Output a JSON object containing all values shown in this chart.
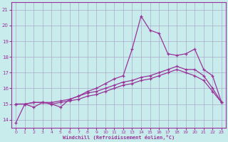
{
  "xlabel": "Windchill (Refroidissement éolien,°C)",
  "bg_color": "#c8ecec",
  "grid_color": "#aaaacc",
  "line_color": "#993399",
  "x_ticks": [
    0,
    1,
    2,
    3,
    4,
    5,
    6,
    7,
    8,
    9,
    10,
    11,
    12,
    13,
    14,
    15,
    16,
    17,
    18,
    19,
    20,
    21,
    22,
    23
  ],
  "y_ticks": [
    14,
    15,
    16,
    17,
    18,
    19,
    20,
    21
  ],
  "xlim": [
    -0.5,
    23.5
  ],
  "ylim": [
    13.5,
    21.5
  ],
  "line1_x": [
    0,
    1,
    2,
    3,
    4,
    5,
    6,
    7,
    8,
    9,
    10,
    11,
    12,
    13,
    14,
    15,
    16,
    17,
    18,
    19,
    20,
    21,
    22,
    23
  ],
  "line1_y": [
    13.8,
    15.0,
    14.8,
    15.1,
    15.0,
    14.8,
    15.3,
    15.5,
    15.8,
    16.0,
    16.3,
    16.6,
    16.8,
    18.5,
    20.6,
    19.7,
    19.5,
    18.2,
    18.1,
    18.2,
    18.5,
    17.2,
    16.8,
    15.1
  ],
  "line2_x": [
    0,
    1,
    2,
    3,
    4,
    5,
    6,
    7,
    8,
    9,
    10,
    11,
    12,
    13,
    14,
    15,
    16,
    17,
    18,
    19,
    20,
    21,
    22,
    23
  ],
  "line2_y": [
    15.0,
    15.0,
    15.1,
    15.1,
    15.1,
    15.2,
    15.3,
    15.5,
    15.7,
    15.8,
    16.0,
    16.2,
    16.4,
    16.5,
    16.7,
    16.8,
    17.0,
    17.2,
    17.4,
    17.2,
    17.2,
    16.8,
    16.0,
    15.1
  ],
  "line3_x": [
    0,
    1,
    2,
    3,
    4,
    5,
    6,
    7,
    8,
    9,
    10,
    11,
    12,
    13,
    14,
    15,
    16,
    17,
    18,
    19,
    20,
    21,
    22,
    23
  ],
  "line3_y": [
    15.0,
    15.0,
    15.1,
    15.1,
    15.0,
    15.1,
    15.2,
    15.3,
    15.5,
    15.6,
    15.8,
    16.0,
    16.2,
    16.3,
    16.5,
    16.6,
    16.8,
    17.0,
    17.2,
    17.0,
    16.8,
    16.5,
    15.8,
    15.1
  ]
}
